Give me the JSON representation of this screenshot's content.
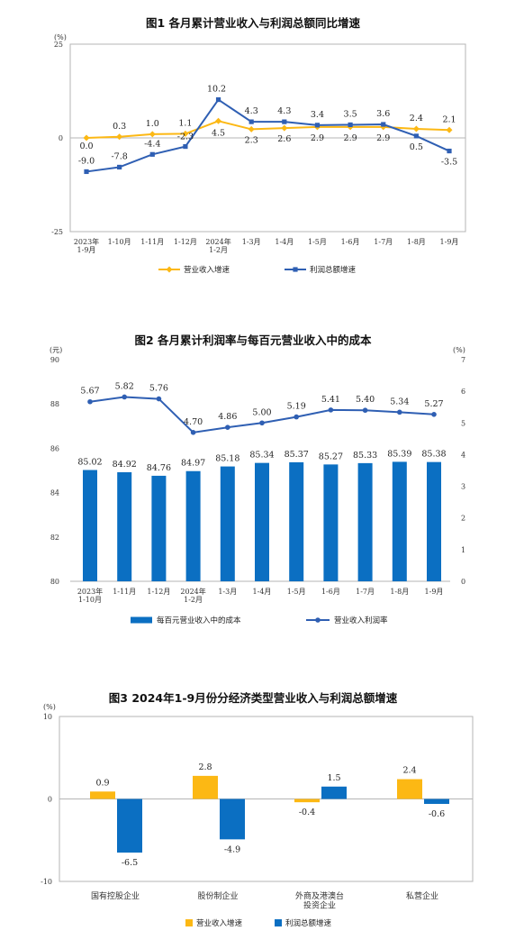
{
  "colors": {
    "blue": "#2f5fb3",
    "gold": "#fcb814",
    "bar_blue": "#0b6fc2",
    "frame": "#b5b5b5"
  },
  "chart_data": [
    {
      "type": "line",
      "title": "图1  各月累计营业收入与利润总额同比增速",
      "unit": "(%)",
      "ylim": [
        -25,
        25
      ],
      "yticks": [
        "25",
        "0",
        "-25"
      ],
      "categories": [
        "2023年\n1-9月",
        "1-10月",
        "1-11月",
        "1-12月",
        "2024年\n1-2月",
        "1-3月",
        "1-4月",
        "1-5月",
        "1-6月",
        "1-7月",
        "1-8月",
        "1-9月"
      ],
      "series": [
        {
          "name": "营业收入增速",
          "color": "#fcb814",
          "values": [
            0.0,
            0.3,
            1.0,
            1.1,
            4.5,
            2.3,
            2.6,
            2.9,
            2.9,
            2.9,
            2.4,
            2.1
          ],
          "labels": [
            "0.0",
            "0.3",
            "1.0",
            "1.1",
            "4.5",
            "2.3",
            "2.6",
            "2.9",
            "2.9",
            "2.9",
            "2.4",
            "2.1"
          ]
        },
        {
          "name": "利润总额增速",
          "color": "#2f5fb3",
          "values": [
            -9.0,
            -7.8,
            -4.4,
            -2.3,
            10.2,
            4.3,
            4.3,
            3.4,
            3.5,
            3.6,
            0.5,
            -3.5
          ],
          "labels": [
            "-9.0",
            "-7.8",
            "-4.4",
            "-2.3",
            "10.2",
            "4.3",
            "4.3",
            "3.4",
            "3.5",
            "3.6",
            "0.5",
            "-3.5"
          ]
        }
      ],
      "legend": "bottom"
    },
    {
      "type": "bar+line",
      "title": "图2  各月累计利润率与每百元营业收入中的成本",
      "unit_left": "(元)",
      "unit_right": "(%)",
      "ylim_left": [
        80,
        90
      ],
      "ylim_right": [
        0,
        7
      ],
      "yticks_left": [
        "80",
        "82",
        "84",
        "86",
        "88",
        "90"
      ],
      "yticks_right": [
        "0",
        "1",
        "2",
        "3",
        "4",
        "5",
        "6",
        "7"
      ],
      "categories": [
        "2023年\n1-10月",
        "1-11月",
        "1-12月",
        "2024年\n1-2月",
        "1-3月",
        "1-4月",
        "1-5月",
        "1-6月",
        "1-7月",
        "1-8月",
        "1-9月"
      ],
      "bar_series": {
        "name": "每百元营业收入中的成本",
        "color": "#0b6fc2",
        "values": [
          85.02,
          84.92,
          84.76,
          84.97,
          85.18,
          85.34,
          85.37,
          85.27,
          85.33,
          85.39,
          85.38
        ],
        "labels": [
          "85.02",
          "84.92",
          "84.76",
          "84.97",
          "85.18",
          "85.34",
          "85.37",
          "85.27",
          "85.33",
          "85.39",
          "85.38"
        ]
      },
      "line_series": {
        "name": "营业收入利润率",
        "color": "#2f5fb3",
        "values": [
          5.67,
          5.82,
          5.76,
          4.7,
          4.86,
          5.0,
          5.19,
          5.41,
          5.4,
          5.34,
          5.27
        ],
        "labels": [
          "5.67",
          "5.82",
          "5.76",
          "4.70",
          "4.86",
          "5.00",
          "5.19",
          "5.41",
          "5.40",
          "5.34",
          "5.27"
        ]
      },
      "legend": "bottom"
    },
    {
      "type": "bar",
      "title": "图3  2024年1-9月份分经济类型营业收入与利润总额增速",
      "unit": "(%)",
      "ylim": [
        -10,
        10
      ],
      "yticks": [
        "10",
        "0",
        "-10"
      ],
      "categories": [
        "国有控股企业",
        "股份制企业",
        "外商及港澳台\n投资企业",
        "私营企业"
      ],
      "series": [
        {
          "name": "营业收入增速",
          "color": "#fcb814",
          "values": [
            0.9,
            2.8,
            -0.4,
            2.4
          ],
          "labels": [
            "0.9",
            "2.8",
            "-0.4",
            "2.4"
          ]
        },
        {
          "name": "利润总额增速",
          "color": "#0b6fc2",
          "values": [
            -6.5,
            -4.9,
            1.5,
            -0.6
          ],
          "labels": [
            "-6.5",
            "-4.9",
            "1.5",
            "-0.6"
          ]
        }
      ],
      "legend": "bottom"
    }
  ]
}
